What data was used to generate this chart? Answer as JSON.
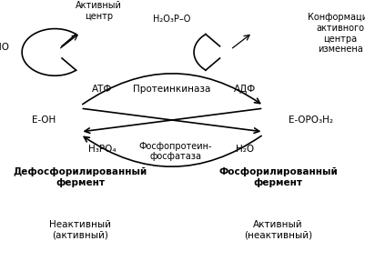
{
  "bg_color": "#ffffff",
  "fig_width": 4.02,
  "fig_height": 2.87,
  "dpi": 100,
  "texts": {
    "atf": "АТФ",
    "adf": "АДФ",
    "proteinkiaza": "Протеинкиназа",
    "e_oh": "Е-ОН",
    "e_opo3h2": "Е-ОРО₃H₂",
    "h3po4": "H₃PO₄",
    "phosphoprotein": "Фосфопротеин-\nфосфатаза",
    "h2o": "H₂O",
    "dephospho": "Дефосфорилированный\nфермент",
    "phospho": "Фосфорилированный\nфермент",
    "inactive": "Неактивный\n(активный)",
    "active": "Активный\n(неактивный)",
    "ho": "НО",
    "h2o3p_o": "H₂O₃P–O",
    "active_center": "Активный\nцентр",
    "conformation": "Конформация\nактивного\nцентра\nизменена"
  }
}
